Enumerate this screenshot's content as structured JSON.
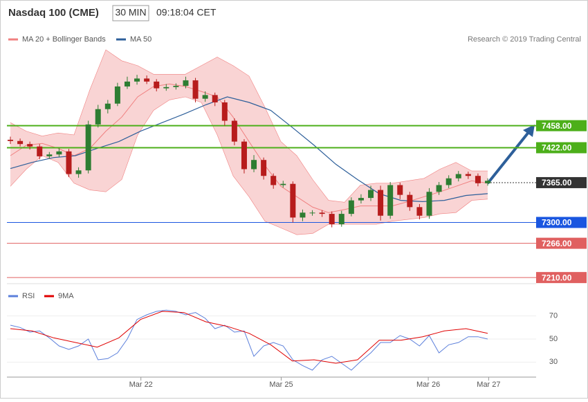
{
  "chart_data": [
    {
      "type": "candlestick",
      "title": "Nasdaq 100 (CME)",
      "interval": "30 MIN",
      "time": "09:18:04 CET",
      "credit": "Research © 2019 Trading Central",
      "ylim": [
        7200,
        7618
      ],
      "xlim": [
        0,
        49
      ],
      "up_color": "#2e7d32",
      "down_color": "#b71c1c",
      "candles": [
        [
          7435,
          7440,
          7428,
          7433
        ],
        [
          7433,
          7437,
          7424,
          7428
        ],
        [
          7428,
          7432,
          7419,
          7424
        ],
        [
          7424,
          7428,
          7403,
          7408
        ],
        [
          7408,
          7415,
          7404,
          7411
        ],
        [
          7411,
          7421,
          7407,
          7416
        ],
        [
          7416,
          7420,
          7374,
          7379
        ],
        [
          7379,
          7390,
          7373,
          7385
        ],
        [
          7385,
          7466,
          7380,
          7460
        ],
        [
          7460,
          7492,
          7455,
          7485
        ],
        [
          7485,
          7500,
          7478,
          7494
        ],
        [
          7494,
          7528,
          7490,
          7522
        ],
        [
          7522,
          7538,
          7518,
          7530
        ],
        [
          7530,
          7541,
          7525,
          7535
        ],
        [
          7535,
          7540,
          7526,
          7530
        ],
        [
          7530,
          7534,
          7514,
          7519
        ],
        [
          7519,
          7526,
          7515,
          7521
        ],
        [
          7521,
          7527,
          7517,
          7523
        ],
        [
          7523,
          7538,
          7519,
          7532
        ],
        [
          7532,
          7536,
          7496,
          7502
        ],
        [
          7502,
          7514,
          7497,
          7508
        ],
        [
          7508,
          7512,
          7490,
          7496
        ],
        [
          7496,
          7500,
          7458,
          7466
        ],
        [
          7466,
          7470,
          7426,
          7432
        ],
        [
          7432,
          7436,
          7380,
          7387
        ],
        [
          7387,
          7410,
          7382,
          7402
        ],
        [
          7402,
          7406,
          7370,
          7376
        ],
        [
          7376,
          7380,
          7355,
          7361
        ],
        [
          7361,
          7368,
          7357,
          7363
        ],
        [
          7363,
          7367,
          7300,
          7308
        ],
        [
          7308,
          7321,
          7302,
          7316
        ],
        [
          7316,
          7320,
          7311,
          7316
        ],
        [
          7316,
          7320,
          7309,
          7314
        ],
        [
          7314,
          7318,
          7292,
          7297
        ],
        [
          7297,
          7319,
          7293,
          7314
        ],
        [
          7314,
          7341,
          7310,
          7336
        ],
        [
          7336,
          7346,
          7331,
          7340
        ],
        [
          7340,
          7360,
          7335,
          7353
        ],
        [
          7353,
          7360,
          7303,
          7311
        ],
        [
          7311,
          7366,
          7306,
          7361
        ],
        [
          7361,
          7365,
          7338,
          7345
        ],
        [
          7345,
          7350,
          7319,
          7325
        ],
        [
          7325,
          7330,
          7305,
          7311
        ],
        [
          7311,
          7356,
          7306,
          7350
        ],
        [
          7350,
          7366,
          7345,
          7361
        ],
        [
          7361,
          7377,
          7356,
          7372
        ],
        [
          7372,
          7384,
          7367,
          7379
        ],
        [
          7379,
          7383,
          7371,
          7376
        ],
        [
          7376,
          7380,
          7359,
          7364
        ],
        [
          7364,
          7372,
          7360,
          7368
        ]
      ],
      "series": [
        {
          "name": "MA 20 + Bollinger Bands",
          "color": "#f08080",
          "band_color": "#f9d4d4",
          "values": [
            7409,
            7426,
            7429,
            7421,
            7409,
            7421,
            7449,
            7472,
            7505,
            7522,
            7526,
            7522,
            7514,
            7505,
            7472,
            7432,
            7393,
            7359,
            7342,
            7325,
            7316,
            7321,
            7327,
            7327,
            7327,
            7334,
            7342,
            7350,
            7359,
            7368,
            7364
          ],
          "upper": [
            7463,
            7449,
            7441,
            7446,
            7443,
            7517,
            7582,
            7564,
            7556,
            7542,
            7542,
            7542,
            7556,
            7570,
            7556,
            7539,
            7488,
            7432,
            7409,
            7370,
            7336,
            7333,
            7361,
            7364,
            7364,
            7368,
            7372,
            7387,
            7398,
            7384,
            7384
          ],
          "lower": [
            7359,
            7387,
            7409,
            7398,
            7364,
            7353,
            7350,
            7370,
            7443,
            7483,
            7500,
            7505,
            7496,
            7443,
            7376,
            7342,
            7302,
            7291,
            7280,
            7282,
            7297,
            7297,
            7297,
            7297,
            7302,
            7305,
            7308,
            7314,
            7316,
            7336,
            7338
          ]
        },
        {
          "name": "MA 50",
          "color": "#2d5f9a",
          "values": [
            7388,
            7398,
            7406,
            7409,
            7421,
            7432,
            7449,
            7463,
            7477,
            7492,
            7505,
            7496,
            7483,
            7455,
            7426,
            7395,
            7370,
            7347,
            7336,
            7334,
            7336,
            7344,
            7347
          ]
        }
      ],
      "levels": [
        {
          "value": 7458,
          "label": "7458.00",
          "color": "#4caf1a"
        },
        {
          "value": 7422,
          "label": "7422.00",
          "color": "#4caf1a"
        },
        {
          "value": 7365,
          "label": "7365.00",
          "color": "#333333",
          "dashed": true
        },
        {
          "value": 7300,
          "label": "7300.00",
          "color": "#1a56e0"
        },
        {
          "value": 7266,
          "label": "7266.00",
          "color": "#e06060"
        },
        {
          "value": 7210,
          "label": "7210.00",
          "color": "#e06060"
        }
      ]
    },
    {
      "type": "line",
      "ylim": [
        20,
        80
      ],
      "yticks": [
        30,
        50,
        70
      ],
      "xlim": [
        0,
        49
      ],
      "xticks": [
        {
          "value": 13.4,
          "label": "Mar 22"
        },
        {
          "value": 27.8,
          "label": "Mar 25"
        },
        {
          "value": 42.9,
          "label": "Mar 26"
        },
        {
          "value": 49.1,
          "label": "Mar 27"
        }
      ],
      "series": [
        {
          "name": "RSI",
          "color": "#5b7fdb",
          "values": [
            62,
            60,
            56,
            57,
            51,
            44,
            41,
            44,
            50,
            32,
            33,
            38,
            50,
            67,
            71,
            74,
            75,
            74,
            71,
            73,
            68,
            59,
            62,
            56,
            57,
            35,
            44,
            47,
            44,
            32,
            27,
            23,
            32,
            35,
            29,
            23,
            31,
            38,
            47,
            47,
            53,
            50,
            44,
            53,
            38,
            45,
            47,
            52,
            52,
            50
          ]
        },
        {
          "name": "9MA",
          "color": "#e00000",
          "values": [
            59,
            57,
            51,
            47,
            43,
            51,
            67,
            74,
            73,
            65,
            61,
            55,
            45,
            31,
            32,
            29,
            32,
            49,
            49,
            52,
            57,
            59,
            55
          ]
        }
      ]
    }
  ]
}
